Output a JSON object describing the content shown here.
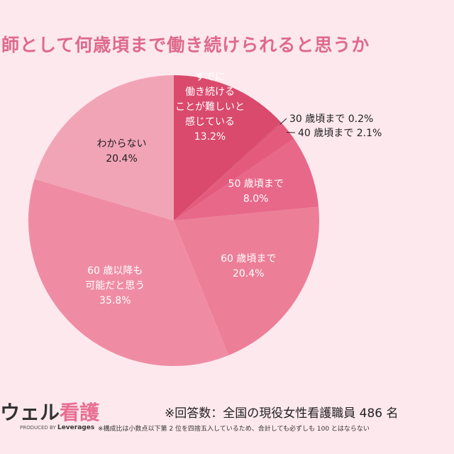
{
  "chart_data": {
    "type": "pie",
    "title": "師として何歳頃まで働き続けられると思うか",
    "slices": [
      {
        "label": [
          "すでに",
          "働き続ける",
          "ことが難しいと",
          "感じている"
        ],
        "value": 13.2,
        "color": "#d94a6c"
      },
      {
        "label": [
          "30 歳頃まで"
        ],
        "value": 0.2,
        "color": "#de5274"
      },
      {
        "label": [
          "40 歳頃まで"
        ],
        "value": 2.1,
        "color": "#e45a7c"
      },
      {
        "label": [
          "50 歳頃まで"
        ],
        "value": 8.0,
        "color": "#e8688a"
      },
      {
        "label": [
          "60 歳頃まで"
        ],
        "value": 20.4,
        "color": "#ec7e98"
      },
      {
        "label": [
          "60 歳以降も",
          "可能だと思う"
        ],
        "value": 35.8,
        "color": "#ef8ca4"
      },
      {
        "label": [
          "わからない"
        ],
        "value": 20.4,
        "color": "#f2a4b7"
      }
    ],
    "value_suffix": "%"
  },
  "footer": {
    "logo_main": "ウェル",
    "logo_accent": "看護",
    "produced_by": "PRODUCED BY",
    "brand": "Leverages",
    "respondents": "※回答数：全国の現役女性看護職員 486 名",
    "note": "※構成比は小数点以下第 2 位を四捨五入しているため、合計しても必ずしも 100 とはならない"
  }
}
